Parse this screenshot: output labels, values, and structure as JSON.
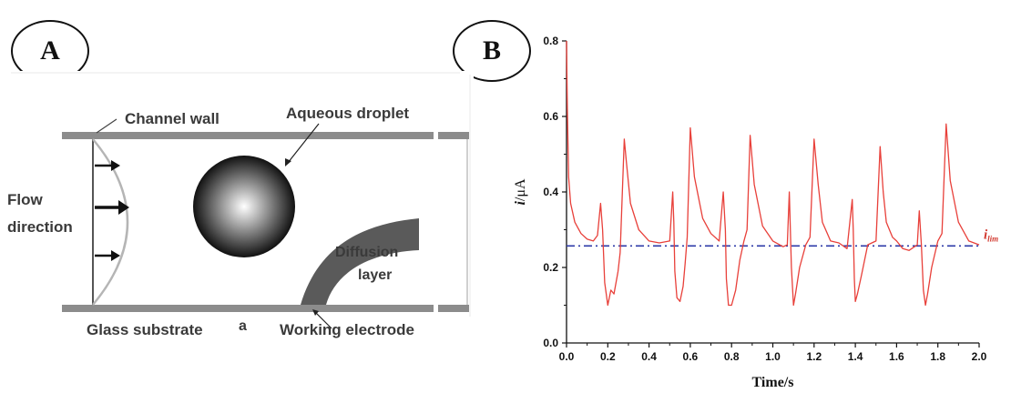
{
  "panels": {
    "left_label": "A",
    "right_label": "B"
  },
  "diagram": {
    "labels": {
      "channel_wall": "Channel wall",
      "aqueous_droplet": "Aqueous droplet",
      "flow_direction_line1": "Flow",
      "flow_direction_line2": "direction",
      "diffusion_line1": "Diffusion",
      "diffusion_line2": "layer",
      "glass_substrate": "Glass substrate",
      "subpanel_marker": "a",
      "working_electrode": "Working electrode"
    },
    "colors": {
      "wall": "#8c8c8c",
      "droplet_center": "#ffffff",
      "droplet_edge": "#111111",
      "diffusion_layer": "#5a5a5a",
      "flow_profile": "#b5b5b5"
    }
  },
  "chart_data": {
    "type": "line",
    "xlabel": "Time/s",
    "ylabel_italic": "i",
    "ylabel_rest": "/μA",
    "xlim": [
      0,
      2.0
    ],
    "ylim": [
      0,
      0.8
    ],
    "x_ticks": [
      "0.0",
      "0.2",
      "0.4",
      "0.6",
      "0.8",
      "1.0",
      "1.2",
      "1.4",
      "1.6",
      "1.8",
      "2.0"
    ],
    "y_ticks": [
      "0.0",
      "0.2",
      "0.4",
      "0.6",
      "0.8"
    ],
    "reference_line": {
      "value": 0.257,
      "label_main": "i",
      "label_sub": "lim",
      "color": "#2d3aa8",
      "style": "dash-dot"
    },
    "series": [
      {
        "color": "#e8403a",
        "x": [
          0.0,
          0.004,
          0.01,
          0.02,
          0.04,
          0.07,
          0.1,
          0.13,
          0.15,
          0.165,
          0.175,
          0.185,
          0.2,
          0.215,
          0.23,
          0.25,
          0.26,
          0.28,
          0.29,
          0.31,
          0.35,
          0.4,
          0.45,
          0.5,
          0.515,
          0.52,
          0.525,
          0.535,
          0.55,
          0.565,
          0.575,
          0.585,
          0.6,
          0.62,
          0.66,
          0.7,
          0.74,
          0.76,
          0.77,
          0.775,
          0.785,
          0.8,
          0.82,
          0.84,
          0.86,
          0.875,
          0.89,
          0.91,
          0.95,
          1.0,
          1.05,
          1.07,
          1.08,
          1.09,
          1.1,
          1.11,
          1.13,
          1.16,
          1.18,
          1.2,
          1.22,
          1.24,
          1.28,
          1.32,
          1.36,
          1.385,
          1.39,
          1.395,
          1.4,
          1.41,
          1.43,
          1.46,
          1.5,
          1.52,
          1.535,
          1.55,
          1.58,
          1.6,
          1.63,
          1.66,
          1.7,
          1.71,
          1.72,
          1.73,
          1.74,
          1.75,
          1.77,
          1.8,
          1.82,
          1.84,
          1.86,
          1.9,
          1.95,
          2.0
        ],
        "y": [
          0.8,
          0.62,
          0.44,
          0.37,
          0.32,
          0.29,
          0.275,
          0.27,
          0.285,
          0.37,
          0.3,
          0.16,
          0.1,
          0.14,
          0.13,
          0.19,
          0.24,
          0.54,
          0.48,
          0.37,
          0.3,
          0.27,
          0.265,
          0.27,
          0.4,
          0.32,
          0.19,
          0.12,
          0.11,
          0.15,
          0.21,
          0.28,
          0.57,
          0.44,
          0.33,
          0.29,
          0.27,
          0.4,
          0.3,
          0.17,
          0.1,
          0.1,
          0.14,
          0.22,
          0.27,
          0.3,
          0.55,
          0.42,
          0.31,
          0.27,
          0.255,
          0.26,
          0.4,
          0.2,
          0.1,
          0.13,
          0.2,
          0.26,
          0.28,
          0.54,
          0.42,
          0.32,
          0.27,
          0.265,
          0.25,
          0.38,
          0.3,
          0.17,
          0.11,
          0.13,
          0.18,
          0.26,
          0.27,
          0.52,
          0.4,
          0.32,
          0.28,
          0.27,
          0.25,
          0.245,
          0.26,
          0.35,
          0.26,
          0.14,
          0.1,
          0.13,
          0.2,
          0.27,
          0.29,
          0.58,
          0.43,
          0.32,
          0.27,
          0.26
        ]
      }
    ]
  }
}
